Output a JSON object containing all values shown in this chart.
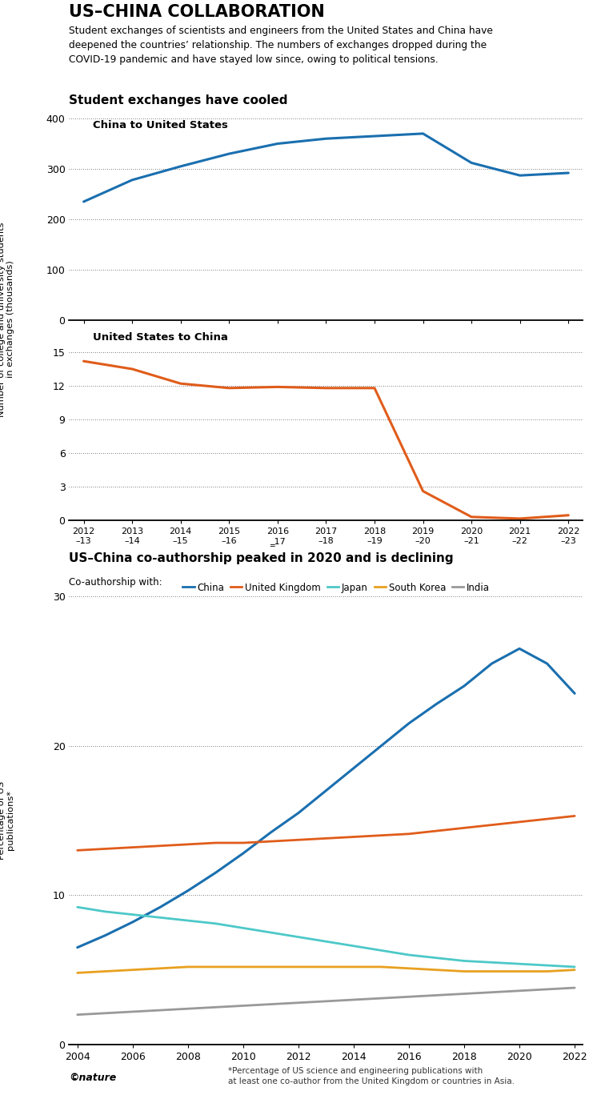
{
  "title": "US–CHINA COLLABORATION",
  "subtitle": "Student exchanges of scientists and engineers from the United States and China have\ndeepened the countries’ relationship. The numbers of exchanges dropped during the\nCOVID-19 pandemic and have stayed low since, owing to political tensions.",
  "section1_title": "Student exchanges have cooled",
  "chart1_title": "China to United States",
  "chart2_title": "United States to China",
  "chart1_years": [
    2012,
    2013,
    2014,
    2015,
    2016,
    2017,
    2018,
    2019,
    2020,
    2021,
    2022
  ],
  "chart1_values": [
    235,
    278,
    305,
    330,
    350,
    360,
    365,
    370,
    312,
    287,
    292
  ],
  "chart1_color": "#1a6faf",
  "chart1_ylim": [
    0,
    400
  ],
  "chart1_yticks": [
    0,
    100,
    200,
    300,
    400
  ],
  "chart2_years": [
    2012,
    2013,
    2014,
    2015,
    2016,
    2017,
    2018,
    2019,
    2020,
    2021,
    2022
  ],
  "chart2_values": [
    14.2,
    13.5,
    12.2,
    11.8,
    11.9,
    11.8,
    11.8,
    2.6,
    0.3,
    0.15,
    0.45
  ],
  "chart2_color": "#e05c1a",
  "chart2_ylim": [
    0,
    15
  ],
  "chart2_yticks": [
    0,
    3,
    6,
    9,
    12,
    15
  ],
  "chart_xlabels": [
    "2012\n–13",
    "2013\n–14",
    "2014\n–15",
    "2015\n–16",
    "2016\n‗17",
    "2017\n–18",
    "2018\n–19",
    "2019\n–20",
    "2020\n–21",
    "2021\n–22",
    "2022\n–23"
  ],
  "ylabel_shared": "Number of college and university students\nin exchanges (thousands)",
  "section2_title": "US–China co-authorship peaked in 2020 and is declining",
  "coauth_legend_label": "Co-authorship with:",
  "coauth_years": [
    2004,
    2005,
    2006,
    2007,
    2008,
    2009,
    2010,
    2011,
    2012,
    2013,
    2014,
    2015,
    2016,
    2017,
    2018,
    2019,
    2020,
    2021,
    2022
  ],
  "coauth_china": [
    6.5,
    7.3,
    8.2,
    9.2,
    10.3,
    11.5,
    12.8,
    14.2,
    15.5,
    17.0,
    18.5,
    20.0,
    21.5,
    22.8,
    24.0,
    25.5,
    26.5,
    25.5,
    23.5
  ],
  "coauth_uk": [
    13.0,
    13.1,
    13.2,
    13.3,
    13.4,
    13.5,
    13.5,
    13.6,
    13.7,
    13.8,
    13.9,
    14.0,
    14.1,
    14.3,
    14.5,
    14.7,
    14.9,
    15.1,
    15.3
  ],
  "coauth_japan": [
    9.2,
    8.9,
    8.7,
    8.5,
    8.3,
    8.1,
    7.8,
    7.5,
    7.2,
    6.9,
    6.6,
    6.3,
    6.0,
    5.8,
    5.6,
    5.5,
    5.4,
    5.3,
    5.2
  ],
  "coauth_southkorea": [
    4.8,
    4.9,
    5.0,
    5.1,
    5.2,
    5.2,
    5.2,
    5.2,
    5.2,
    5.2,
    5.2,
    5.2,
    5.1,
    5.0,
    4.9,
    4.9,
    4.9,
    4.9,
    5.0
  ],
  "coauth_india": [
    2.0,
    2.1,
    2.2,
    2.3,
    2.4,
    2.5,
    2.6,
    2.7,
    2.8,
    2.9,
    3.0,
    3.1,
    3.2,
    3.3,
    3.4,
    3.5,
    3.6,
    3.7,
    3.8
  ],
  "coauth_colors": {
    "China": "#1a6faf",
    "United Kingdom": "#e05c1a",
    "Japan": "#4dc8c8",
    "South Korea": "#e8a020",
    "India": "#999999"
  },
  "coauth_ylim": [
    0,
    30
  ],
  "coauth_yticks": [
    0,
    10,
    20,
    30
  ],
  "coauth_ylabel": "Percentage of US\npublications*",
  "coauth_footnote": "*Percentage of US science and engineering publications with\nat least one co-author from the United Kingdom or countries in Asia.",
  "nature_logo": "©nature",
  "background_color": "#ffffff"
}
